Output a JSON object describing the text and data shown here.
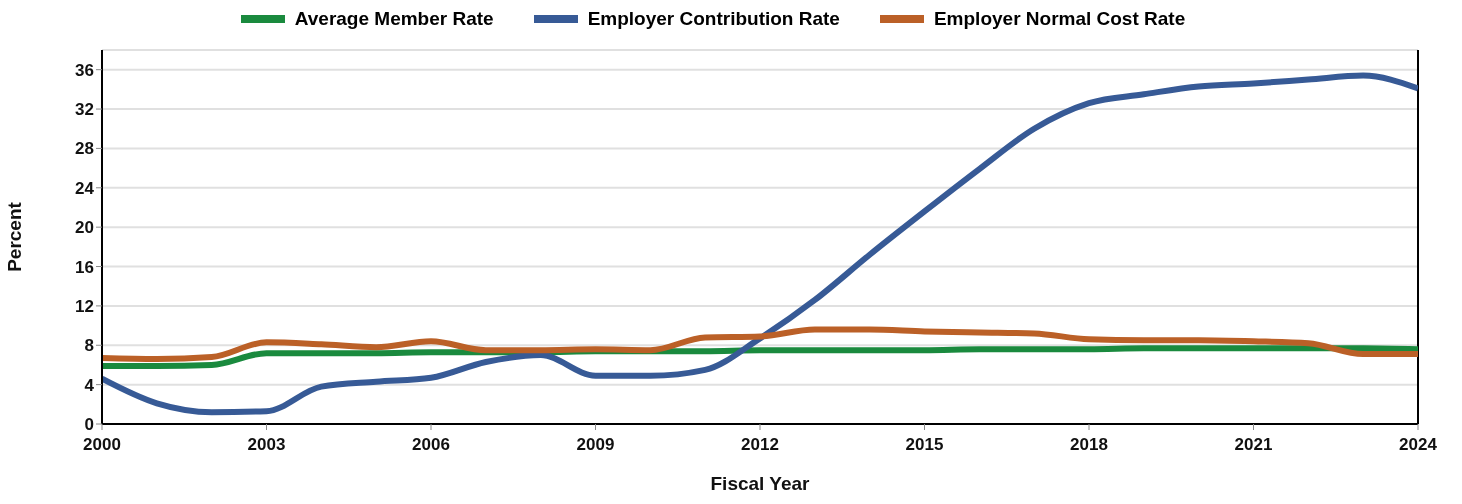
{
  "chart_data": {
    "type": "line",
    "xlabel": "Fiscal Year",
    "ylabel": "Percent",
    "x": [
      2000,
      2001,
      2002,
      2003,
      2004,
      2005,
      2006,
      2007,
      2008,
      2009,
      2010,
      2011,
      2012,
      2013,
      2014,
      2015,
      2016,
      2017,
      2018,
      2019,
      2020,
      2021,
      2022,
      2023,
      2024
    ],
    "series": [
      {
        "name": "Average Member Rate",
        "color": "#1a8a3e",
        "values": [
          5.9,
          5.9,
          6.0,
          7.2,
          7.2,
          7.2,
          7.3,
          7.3,
          7.3,
          7.4,
          7.4,
          7.4,
          7.5,
          7.5,
          7.5,
          7.5,
          7.6,
          7.6,
          7.6,
          7.7,
          7.7,
          7.7,
          7.7,
          7.7,
          7.6
        ]
      },
      {
        "name": "Employer Contribution Rate",
        "color": "#375a96",
        "values": [
          4.6,
          2.1,
          1.2,
          1.3,
          3.8,
          4.3,
          4.7,
          6.3,
          7.0,
          4.9,
          4.9,
          5.5,
          8.7,
          12.6,
          17.2,
          21.6,
          25.9,
          30.0,
          32.6,
          33.5,
          34.3,
          34.6,
          35.0,
          35.4,
          34.1
        ]
      },
      {
        "name": "Employer Normal Cost Rate",
        "color": "#bb6027",
        "values": [
          6.7,
          6.6,
          6.8,
          8.3,
          8.1,
          7.8,
          8.4,
          7.5,
          7.5,
          7.6,
          7.5,
          8.8,
          8.9,
          9.6,
          9.6,
          9.4,
          9.3,
          9.2,
          8.6,
          8.5,
          8.5,
          8.4,
          8.2,
          7.1,
          7.1
        ]
      }
    ],
    "xlim": [
      2000,
      2024
    ],
    "xticks": [
      2000,
      2003,
      2006,
      2009,
      2012,
      2015,
      2018,
      2021,
      2024
    ],
    "ylim": [
      0,
      38
    ],
    "yticks": [
      0,
      4,
      8,
      12,
      16,
      20,
      24,
      28,
      32,
      36
    ],
    "grid": "y",
    "legend": "top",
    "marker": "none",
    "line_style": "solid"
  }
}
